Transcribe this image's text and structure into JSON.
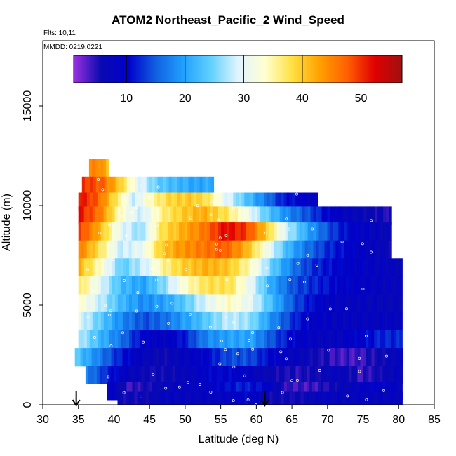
{
  "chart_data": {
    "type": "heatmap",
    "title": "ATOM2 Northeast_Pacific_2 Wind_Speed",
    "notes": [
      "Flts: 10,11",
      "MMDD: 0219,0221"
    ],
    "xlabel": "Latitude (deg N)",
    "ylabel": "Altitude (m)",
    "xlim": [
      30,
      85
    ],
    "ylim": [
      0,
      18000
    ],
    "xticks": [
      30,
      35,
      40,
      45,
      50,
      55,
      60,
      65,
      70,
      75,
      80,
      85
    ],
    "yticks": [
      0,
      5000,
      10000,
      15000
    ],
    "colorbar": {
      "range": [
        1,
        57
      ],
      "ticks": [
        10,
        20,
        30,
        40,
        50
      ],
      "colors": [
        "#9a30e0",
        "#0a0ab0",
        "#0000cc",
        "#1060e0",
        "#20a0ff",
        "#60d0ff",
        "#e0f4ff",
        "#ffffd0",
        "#ffe040",
        "#ffa000",
        "#ff6000",
        "#e00000",
        "#a01010"
      ]
    },
    "arrows_lat": [
      34.7,
      61.2
    ],
    "heatmap_rows": [
      {
        "alt": 11900,
        "x0": 36.5,
        "x1": 39.3,
        "values": [
          44,
          45,
          40
        ]
      },
      {
        "alt": 11000,
        "x0": 35.5,
        "x1": 54.0,
        "values": [
          50,
          48,
          40,
          30,
          24,
          22,
          20,
          21
        ]
      },
      {
        "alt": 10200,
        "x0": 35.0,
        "x1": 68.6,
        "values": [
          52,
          48,
          38,
          28,
          35,
          39,
          40,
          38,
          30,
          24,
          18,
          12,
          10,
          8
        ]
      },
      {
        "alt": 9500,
        "x0": 35.0,
        "x1": 79.0,
        "values": [
          52,
          46,
          34,
          28,
          36,
          40,
          42,
          38,
          32,
          24,
          18,
          14,
          10,
          8,
          6,
          5
        ]
      },
      {
        "alt": 8700,
        "x0": 35.0,
        "x1": 79.0,
        "values": [
          50,
          42,
          30,
          26,
          38,
          42,
          46,
          52,
          50,
          40,
          28,
          20,
          14,
          10,
          8,
          6
        ]
      },
      {
        "alt": 7800,
        "x0": 35.0,
        "x1": 79.0,
        "values": [
          46,
          38,
          28,
          30,
          40,
          44,
          46,
          48,
          42,
          32,
          22,
          16,
          12,
          10,
          8,
          6
        ]
      },
      {
        "alt": 6900,
        "x0": 35.0,
        "x1": 80.5,
        "values": [
          42,
          34,
          24,
          28,
          36,
          40,
          42,
          40,
          34,
          24,
          16,
          12,
          10,
          9,
          8,
          7
        ]
      },
      {
        "alt": 6000,
        "x0": 35.0,
        "x1": 80.5,
        "values": [
          38,
          30,
          22,
          20,
          26,
          34,
          38,
          38,
          30,
          20,
          14,
          12,
          10,
          9,
          8,
          7
        ]
      },
      {
        "alt": 5100,
        "x0": 35.0,
        "x1": 80.5,
        "values": [
          34,
          28,
          22,
          18,
          20,
          24,
          30,
          34,
          30,
          22,
          14,
          10,
          8,
          8,
          7,
          7
        ]
      },
      {
        "alt": 4200,
        "x0": 35.0,
        "x1": 80.5,
        "values": [
          30,
          24,
          18,
          14,
          16,
          20,
          24,
          28,
          26,
          18,
          12,
          9,
          8,
          8,
          8,
          8
        ]
      },
      {
        "alt": 3300,
        "x0": 35.0,
        "x1": 80.5,
        "values": [
          28,
          22,
          16,
          10,
          8,
          12,
          18,
          20,
          20,
          14,
          10,
          8,
          8,
          10,
          12,
          12
        ]
      },
      {
        "alt": 2400,
        "x0": 34.5,
        "x1": 80.5,
        "values": [
          24,
          18,
          12,
          8,
          6,
          8,
          10,
          14,
          14,
          10,
          8,
          6,
          4,
          4,
          6,
          8
        ]
      },
      {
        "alt": 1500,
        "x0": 36.0,
        "x1": 80.5,
        "values": [
          18,
          12,
          8,
          6,
          6,
          8,
          10,
          10,
          8,
          6,
          5,
          6,
          8,
          4,
          6,
          8
        ]
      },
      {
        "alt": 700,
        "x0": 39.0,
        "x1": 80.5,
        "values": [
          10,
          4,
          6,
          8,
          8,
          10,
          12,
          10,
          4,
          4,
          6,
          8,
          10,
          8
        ]
      },
      {
        "alt": 200,
        "x0": 40.5,
        "x1": 80.5,
        "values": [
          6,
          6,
          8,
          8,
          8,
          10,
          6,
          6,
          8,
          8,
          8,
          8
        ]
      }
    ]
  }
}
